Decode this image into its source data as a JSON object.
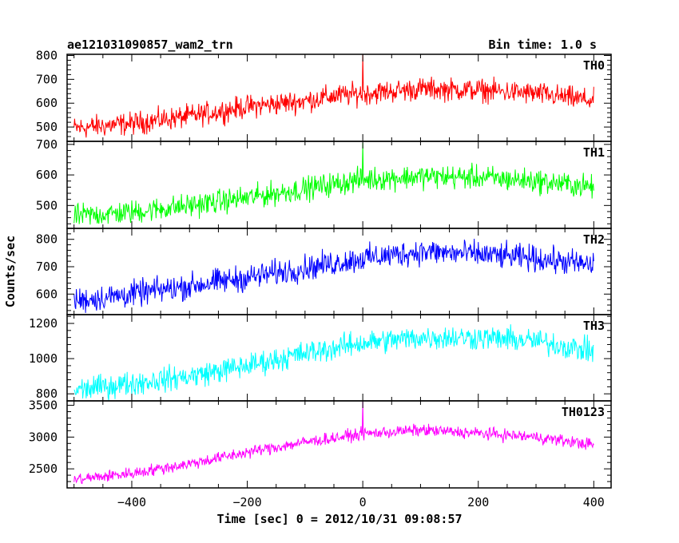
{
  "header": {
    "left_title": "ae121031090857_wam2_trn",
    "right_title": "Bin time: 1.0 s"
  },
  "chart_data": {
    "type": "line",
    "title": "ae121031090857_wam2_trn",
    "subtitle": "Bin time: 1.0 s",
    "xlabel": "Time [sec] 0 = 2012/10/31 09:08:57",
    "ylabel": "Counts/sec",
    "xlim": [
      -512,
      430
    ],
    "x_ticks": [
      -400,
      -200,
      0,
      200,
      400
    ],
    "x_tick_labels": [
      "−400",
      "−200",
      "0",
      "200",
      "400"
    ],
    "bin_time_s": 1.0,
    "x_range_data": [
      -500,
      400
    ],
    "grid": false,
    "panels": [
      {
        "name": "TH0",
        "color": "#ff0000",
        "ylim": [
          440,
          805
        ],
        "y_ticks": [
          500,
          600,
          700,
          800
        ],
        "trend": [
          [
            -500,
            495
          ],
          [
            -400,
            515
          ],
          [
            -300,
            545
          ],
          [
            -200,
            585
          ],
          [
            -100,
            610
          ],
          [
            -50,
            630
          ],
          [
            0,
            640
          ],
          [
            100,
            660
          ],
          [
            200,
            655
          ],
          [
            300,
            640
          ],
          [
            400,
            610
          ]
        ],
        "noise_amplitude": 55,
        "spike": {
          "x": 0,
          "y": 805
        }
      },
      {
        "name": "TH1",
        "color": "#00ff00",
        "ylim": [
          425,
          710
        ],
        "y_ticks": [
          500,
          600,
          700
        ],
        "trend": [
          [
            -500,
            465
          ],
          [
            -400,
            478
          ],
          [
            -300,
            500
          ],
          [
            -200,
            525
          ],
          [
            -100,
            555
          ],
          [
            0,
            585
          ],
          [
            100,
            595
          ],
          [
            200,
            592
          ],
          [
            300,
            580
          ],
          [
            400,
            560
          ]
        ],
        "noise_amplitude": 45,
        "spike": {
          "x": 0,
          "y": 705
        }
      },
      {
        "name": "TH2",
        "color": "#0000ff",
        "ylim": [
          525,
          840
        ],
        "y_ticks": [
          600,
          700,
          800
        ],
        "trend": [
          [
            -500,
            575
          ],
          [
            -400,
            600
          ],
          [
            -300,
            630
          ],
          [
            -200,
            660
          ],
          [
            -100,
            695
          ],
          [
            0,
            730
          ],
          [
            100,
            755
          ],
          [
            200,
            745
          ],
          [
            300,
            730
          ],
          [
            400,
            705
          ]
        ],
        "noise_amplitude": 55
      },
      {
        "name": "TH3",
        "color": "#00ffff",
        "ylim": [
          760,
          1250
        ],
        "y_ticks": [
          800,
          1000,
          1200
        ],
        "trend": [
          [
            -500,
            820
          ],
          [
            -400,
            860
          ],
          [
            -300,
            900
          ],
          [
            -200,
            960
          ],
          [
            -100,
            1030
          ],
          [
            0,
            1090
          ],
          [
            100,
            1120
          ],
          [
            200,
            1120
          ],
          [
            300,
            1100
          ],
          [
            400,
            1040
          ]
        ],
        "noise_amplitude": 80
      },
      {
        "name": "TH0123",
        "color": "#ff00ff",
        "ylim": [
          2200,
          3570
        ],
        "y_ticks": [
          2500,
          3000,
          3500
        ],
        "trend": [
          [
            -500,
            2330
          ],
          [
            -400,
            2430
          ],
          [
            -300,
            2580
          ],
          [
            -200,
            2760
          ],
          [
            -100,
            2920
          ],
          [
            0,
            3050
          ],
          [
            100,
            3110
          ],
          [
            200,
            3060
          ],
          [
            300,
            3000
          ],
          [
            400,
            2880
          ]
        ],
        "noise_amplitude": 110,
        "spike": {
          "x": 0,
          "y": 3560
        }
      }
    ]
  }
}
